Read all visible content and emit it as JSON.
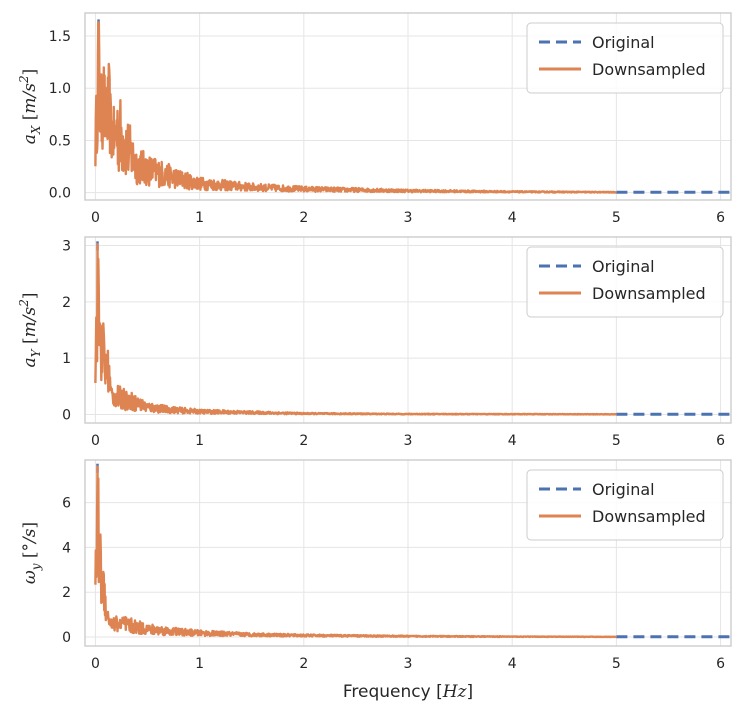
{
  "chart_data": [
    {
      "type": "line",
      "title": "",
      "ylabel": {
        "base": "a",
        "sub": "X",
        "unit_prefix": "[",
        "unit": "m/s",
        "sup": "2",
        "unit_suffix": "]"
      },
      "xlabel": "",
      "xlim": [
        -0.1,
        6.1
      ],
      "ylim": [
        -0.07,
        1.72
      ],
      "yticks": [
        0.0,
        0.5,
        1.0,
        1.5
      ],
      "ytick_labels": [
        "0.0",
        "0.5",
        "1.0",
        "1.5"
      ],
      "xticks": [
        0,
        1,
        2,
        3,
        4,
        5,
        6
      ],
      "xtick_labels": [
        "0",
        "1",
        "2",
        "3",
        "4",
        "5",
        "6"
      ],
      "grid": true,
      "legend": {
        "position": "top-right",
        "entries": [
          "Original",
          "Downsampled"
        ]
      },
      "series": [
        {
          "name": "Original",
          "style": "dashed",
          "color": "#4c72b0",
          "x": [
            0,
            5,
            6.1
          ],
          "values": [
            0.3,
            0.005,
            0.005
          ]
        },
        {
          "name": "Downsampled",
          "style": "solid",
          "color": "#dd8452",
          "x": [
            0.0,
            0.03,
            0.05,
            0.08,
            0.1,
            0.13,
            0.15,
            0.2,
            0.3,
            0.4,
            0.5,
            0.6,
            0.8,
            1.0,
            1.5,
            2.0,
            3.0,
            4.0,
            5.0
          ],
          "values": [
            0.6,
            1.63,
            1.0,
            1.2,
            0.9,
            1.15,
            0.8,
            0.7,
            0.5,
            0.3,
            0.25,
            0.22,
            0.15,
            0.1,
            0.06,
            0.04,
            0.02,
            0.01,
            0.005
          ]
        }
      ]
    },
    {
      "type": "line",
      "title": "",
      "ylabel": {
        "base": "a",
        "sub": "Y",
        "unit_prefix": "[",
        "unit": "m/s",
        "sup": "2",
        "unit_suffix": "]"
      },
      "xlabel": "",
      "xlim": [
        -0.1,
        6.1
      ],
      "ylim": [
        -0.15,
        3.15
      ],
      "yticks": [
        0,
        1,
        2,
        3
      ],
      "ytick_labels": [
        "0",
        "1",
        "2",
        "3"
      ],
      "xticks": [
        0,
        1,
        2,
        3,
        4,
        5,
        6
      ],
      "xtick_labels": [
        "0",
        "1",
        "2",
        "3",
        "4",
        "5",
        "6"
      ],
      "grid": true,
      "legend": {
        "position": "top-right",
        "entries": [
          "Original",
          "Downsampled"
        ]
      },
      "series": [
        {
          "name": "Original",
          "style": "dashed",
          "color": "#4c72b0",
          "x": [
            0,
            5,
            6.1
          ],
          "values": [
            0.5,
            0.005,
            0.005
          ]
        },
        {
          "name": "Downsampled",
          "style": "solid",
          "color": "#dd8452",
          "x": [
            0.0,
            0.02,
            0.04,
            0.06,
            0.08,
            0.1,
            0.12,
            0.15,
            0.2,
            0.3,
            0.4,
            0.5,
            0.7,
            1.0,
            1.5,
            2.0,
            3.0,
            4.0,
            5.0
          ],
          "values": [
            1.1,
            3.02,
            2.0,
            1.5,
            1.6,
            1.0,
            1.15,
            0.5,
            0.35,
            0.3,
            0.22,
            0.15,
            0.1,
            0.06,
            0.04,
            0.02,
            0.01,
            0.008,
            0.005
          ]
        }
      ]
    },
    {
      "type": "line",
      "title": "",
      "ylabel": {
        "base": "ω",
        "sub": "y",
        "unit_prefix": "[",
        "unit": "°/s",
        "sup": "",
        "unit_suffix": "]"
      },
      "xlabel": "Frequency [Hz]",
      "xlim": [
        -0.1,
        6.1
      ],
      "ylim": [
        -0.4,
        7.9
      ],
      "yticks": [
        0,
        2,
        4,
        6
      ],
      "ytick_labels": [
        "0",
        "2",
        "4",
        "6"
      ],
      "xticks": [
        0,
        1,
        2,
        3,
        4,
        5,
        6
      ],
      "xtick_labels": [
        "0",
        "1",
        "2",
        "3",
        "4",
        "5",
        "6"
      ],
      "grid": true,
      "legend": {
        "position": "top-right",
        "entries": [
          "Original",
          "Downsampled"
        ]
      },
      "series": [
        {
          "name": "Original",
          "style": "dashed",
          "color": "#4c72b0",
          "x": [
            0,
            5,
            6.1
          ],
          "values": [
            1.0,
            0.01,
            0.01
          ]
        },
        {
          "name": "Downsampled",
          "style": "solid",
          "color": "#dd8452",
          "x": [
            0.0,
            0.02,
            0.04,
            0.06,
            0.08,
            0.1,
            0.12,
            0.15,
            0.2,
            0.3,
            0.4,
            0.5,
            0.7,
            1.0,
            1.5,
            2.0,
            3.0,
            4.0,
            5.0
          ],
          "values": [
            3.0,
            7.6,
            5.0,
            3.5,
            3.0,
            2.0,
            1.2,
            0.9,
            0.7,
            0.6,
            0.5,
            0.4,
            0.3,
            0.2,
            0.12,
            0.08,
            0.04,
            0.02,
            0.01
          ]
        }
      ]
    }
  ],
  "x_axis_label": {
    "text": "Frequency [",
    "unit": "Hz",
    "suffix": "]"
  }
}
